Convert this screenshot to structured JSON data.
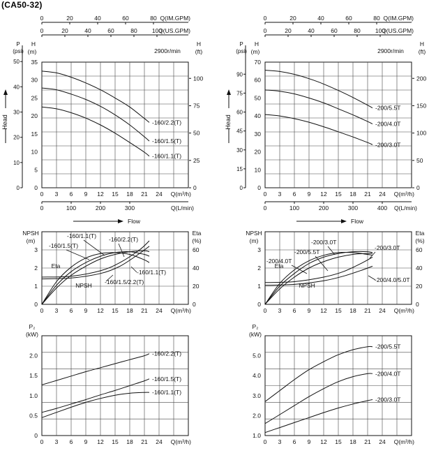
{
  "model_title": "(CA50-32)",
  "chart_data": [
    {
      "id": "hq-left",
      "type": "line",
      "speed_label": "2900r/min",
      "x_axis_bottom_label": "Q(m³/h)",
      "x_axis_bottom2_label": "Q(L/min)",
      "x_top1_label": "Q(IM.GPM)",
      "x_top2_label": "Q(US.GPM)",
      "y_left_outer_label": "P (psi)",
      "y_left_label": "H (m)",
      "y_right_label": "H (ft)",
      "head_label": "Head",
      "flow_label": "Flow",
      "xlim": [
        0,
        30
      ],
      "ylim": [
        0,
        35
      ],
      "x_ticks": [
        "0",
        "3",
        "6",
        "9",
        "12",
        "15",
        "18",
        "21",
        "24"
      ],
      "y_ticks": [
        "0",
        "5",
        "10",
        "15",
        "20",
        "25",
        "30",
        "35"
      ],
      "psi_ticks": [
        "0",
        "10",
        "20",
        "30",
        "40",
        "50"
      ],
      "ft_ticks": [
        "0",
        "25",
        "50",
        "75",
        "100"
      ],
      "lmin_ticks": [
        "0",
        "100",
        "200",
        "300"
      ],
      "imgpm_ticks": [
        "0",
        "20",
        "40",
        "60",
        "80"
      ],
      "usgpm_ticks": [
        "0",
        "20",
        "40",
        "60",
        "80",
        "100"
      ],
      "series": [
        {
          "name": "-160/2.2(T)",
          "x": [
            0,
            3,
            6,
            9,
            12,
            15,
            18,
            21,
            22
          ],
          "y": [
            32.5,
            32,
            30.8,
            29.2,
            27.3,
            25,
            22.5,
            19.3,
            18.2
          ]
        },
        {
          "name": "-160/1.5(T)",
          "x": [
            0,
            3,
            6,
            9,
            12,
            15,
            18,
            21,
            22
          ],
          "y": [
            27.8,
            27.3,
            26.1,
            24.6,
            22.7,
            20.3,
            17.5,
            14.2,
            13
          ]
        },
        {
          "name": "-160/1.1(T)",
          "x": [
            0,
            3,
            6,
            9,
            12,
            15,
            18,
            21,
            22
          ],
          "y": [
            22.5,
            22,
            20.9,
            19.4,
            17.5,
            15.2,
            12.6,
            9.9,
            8.8
          ]
        }
      ]
    },
    {
      "id": "hq-right",
      "type": "line",
      "speed_label": "2900r/min",
      "x_axis_bottom_label": "Q(m³/h)",
      "x_axis_bottom2_label": "Q(L/min)",
      "x_top1_label": "Q(IM.GPM)",
      "x_top2_label": "Q(US.GPM)",
      "y_left_outer_label": "P (psi)",
      "y_left_label": "H (m)",
      "y_right_label": "H (ft)",
      "head_label": "Head",
      "flow_label": "Flow",
      "xlim": [
        0,
        30
      ],
      "ylim": [
        0,
        70
      ],
      "x_ticks": [
        "0",
        "3",
        "6",
        "9",
        "12",
        "15",
        "18",
        "21",
        "24"
      ],
      "y_ticks": [
        "0",
        "10",
        "20",
        "30",
        "40",
        "50",
        "60",
        "70"
      ],
      "psi_ticks": [
        "0",
        "15",
        "30",
        "45",
        "60",
        "75",
        "90"
      ],
      "ft_ticks": [
        "0",
        "50",
        "100",
        "150",
        "200"
      ],
      "lmin_ticks": [
        "0",
        "100",
        "200",
        "300",
        "400"
      ],
      "imgpm_ticks": [
        "0",
        "20",
        "40",
        "60",
        "80"
      ],
      "usgpm_ticks": [
        "0",
        "20",
        "40",
        "60",
        "80",
        "100"
      ],
      "series": [
        {
          "name": "-200/5.5T",
          "x": [
            0,
            3,
            6,
            9,
            12,
            15,
            18,
            21,
            22
          ],
          "y": [
            65.5,
            64.8,
            63.2,
            60.8,
            57.8,
            54.2,
            50.3,
            46,
            44.5
          ]
        },
        {
          "name": "-200/4.0T",
          "x": [
            0,
            3,
            6,
            9,
            12,
            15,
            18,
            21,
            22
          ],
          "y": [
            54.5,
            53.8,
            52.3,
            50,
            47.3,
            44,
            40.6,
            36.9,
            35.6
          ]
        },
        {
          "name": "-200/3.0T",
          "x": [
            0,
            3,
            6,
            9,
            12,
            15,
            18,
            21,
            22
          ],
          "y": [
            40.8,
            40,
            38.5,
            36.5,
            34,
            31.2,
            28.3,
            25.2,
            24
          ]
        }
      ]
    },
    {
      "id": "eta-left",
      "type": "line",
      "x_axis_label": "Q(m³/h)",
      "y_left_label": "NPSH (m)",
      "y_right_label": "Eta (%)",
      "eta_curve_label": "Eta",
      "npsh_curve_label": "NPSH",
      "xlim": [
        0,
        30
      ],
      "ylim": [
        0,
        4
      ],
      "x_ticks": [
        "0",
        "3",
        "6",
        "9",
        "12",
        "15",
        "18",
        "21",
        "24"
      ],
      "y_ticks": [
        "0",
        "1",
        "2",
        "3"
      ],
      "eta_ticks": [
        "0",
        "20",
        "40",
        "60"
      ],
      "eta_series": [
        {
          "name": "-160/1.1(T)",
          "x": [
            0,
            3,
            6,
            9,
            12,
            15,
            18,
            21,
            22
          ],
          "y": [
            0,
            25,
            41,
            51,
            56,
            57,
            55,
            49,
            46
          ]
        },
        {
          "name": "-160/1.5(T)",
          "x": [
            0,
            3,
            6,
            9,
            12,
            15,
            18,
            21,
            22
          ],
          "y": [
            0,
            21,
            36,
            46,
            53,
            57,
            58,
            55,
            53
          ]
        },
        {
          "name": "-160/2.2(T)",
          "x": [
            0,
            3,
            6,
            9,
            12,
            15,
            18,
            21,
            22
          ],
          "y": [
            0,
            18,
            32,
            42,
            50,
            55,
            58,
            59,
            58
          ]
        }
      ],
      "npsh_series": [
        {
          "name": "-160/1.5/2.2(T)",
          "x": [
            0,
            6,
            12,
            16,
            20,
            22
          ],
          "y": [
            1.4,
            1.45,
            1.7,
            2.1,
            2.8,
            3.2
          ]
        },
        {
          "name": "-160/1.1(T)",
          "x": [
            0,
            6,
            12,
            16,
            20,
            22
          ],
          "y": [
            1.5,
            1.55,
            1.85,
            2.3,
            3,
            3.5
          ]
        }
      ]
    },
    {
      "id": "eta-right",
      "type": "line",
      "x_axis_label": "Q(m³/h)",
      "y_left_label": "NPSH (m)",
      "y_right_label": "Eta (%)",
      "eta_curve_label": "Eta",
      "npsh_curve_label": "NPSH",
      "xlim": [
        0,
        30
      ],
      "ylim": [
        0,
        4
      ],
      "x_ticks": [
        "0",
        "3",
        "6",
        "9",
        "12",
        "15",
        "18",
        "21",
        "24"
      ],
      "y_ticks": [
        "0",
        "1",
        "2",
        "3"
      ],
      "eta_ticks": [
        "0",
        "20",
        "40",
        "60"
      ],
      "eta_series": [
        {
          "name": "-200/4.0T",
          "x": [
            0,
            3,
            6,
            9,
            12,
            15,
            18,
            21,
            22
          ],
          "y": [
            0,
            20,
            34,
            45,
            52,
            56,
            58,
            58,
            57
          ]
        },
        {
          "name": "-200/5.5T",
          "x": [
            0,
            3,
            6,
            9,
            12,
            15,
            18,
            21,
            22
          ],
          "y": [
            0,
            17,
            30,
            40,
            47,
            52,
            55,
            56,
            56
          ]
        },
        {
          "name": "-200/3.0T",
          "x": [
            0,
            3,
            6,
            9,
            12,
            15,
            18,
            21,
            22
          ],
          "y": [
            0,
            23,
            38,
            48,
            54,
            57,
            57,
            55,
            54
          ]
        }
      ],
      "npsh_series": [
        {
          "name": "-200/3.0T",
          "x": [
            0,
            6,
            12,
            16,
            20,
            22
          ],
          "y": [
            1.05,
            1.1,
            1.3,
            1.55,
            1.9,
            2.1
          ]
        },
        {
          "name": "-200/4.0/5.0T",
          "x": [
            0,
            6,
            12,
            16,
            20,
            22
          ],
          "y": [
            1.2,
            1.25,
            1.5,
            1.8,
            2.3,
            2.6
          ]
        }
      ]
    },
    {
      "id": "p2-left",
      "type": "line",
      "x_axis_label": "Q(m³/h)",
      "y_label": "P₂ (kW)",
      "xlim": [
        0,
        30
      ],
      "ylim": [
        0,
        2.5
      ],
      "x_ticks": [
        "0",
        "3",
        "6",
        "9",
        "12",
        "15",
        "18",
        "21",
        "24"
      ],
      "y_ticks": [
        "0",
        "0.5",
        "1.0",
        "1.5",
        "2.0"
      ],
      "series": [
        {
          "name": "-160/2.2(T)",
          "x": [
            0,
            3,
            6,
            9,
            12,
            15,
            18,
            21,
            22
          ],
          "y": [
            1.27,
            1.38,
            1.49,
            1.6,
            1.7,
            1.8,
            1.9,
            2.0,
            2.05
          ]
        },
        {
          "name": "-160/1.5(T)",
          "x": [
            0,
            3,
            6,
            9,
            12,
            15,
            18,
            21,
            22
          ],
          "y": [
            0.58,
            0.68,
            0.79,
            0.9,
            1.02,
            1.13,
            1.25,
            1.37,
            1.42
          ]
        },
        {
          "name": "-160/1.1(T)",
          "x": [
            0,
            3,
            6,
            9,
            12,
            15,
            18,
            21,
            22
          ],
          "y": [
            0.45,
            0.58,
            0.71,
            0.83,
            0.93,
            1.01,
            1.06,
            1.08,
            1.08
          ]
        }
      ]
    },
    {
      "id": "p2-right",
      "type": "line",
      "x_axis_label": "Q(m³/h)",
      "y_label": "P₂ (kW)",
      "xlim": [
        0,
        30
      ],
      "ylim": [
        1,
        6
      ],
      "x_ticks": [
        "0",
        "3",
        "6",
        "9",
        "12",
        "15",
        "18",
        "21",
        "24"
      ],
      "y_ticks": [
        "1.0",
        "2.0",
        "3.0",
        "4.0",
        "5.0"
      ],
      "series": [
        {
          "name": "-200/5.5T",
          "x": [
            0,
            3,
            6,
            9,
            12,
            15,
            18,
            21,
            22
          ],
          "y": [
            2.7,
            3.25,
            3.8,
            4.3,
            4.7,
            5.05,
            5.3,
            5.45,
            5.45
          ]
        },
        {
          "name": "-200/4.0T",
          "x": [
            0,
            3,
            6,
            9,
            12,
            15,
            18,
            21,
            22
          ],
          "y": [
            1.6,
            2.05,
            2.5,
            2.95,
            3.35,
            3.7,
            3.95,
            4.1,
            4.1
          ]
        },
        {
          "name": "-200/3.0T",
          "x": [
            0,
            3,
            6,
            9,
            12,
            15,
            18,
            21,
            22
          ],
          "y": [
            1.15,
            1.4,
            1.65,
            1.9,
            2.15,
            2.38,
            2.58,
            2.75,
            2.8
          ]
        }
      ]
    }
  ]
}
